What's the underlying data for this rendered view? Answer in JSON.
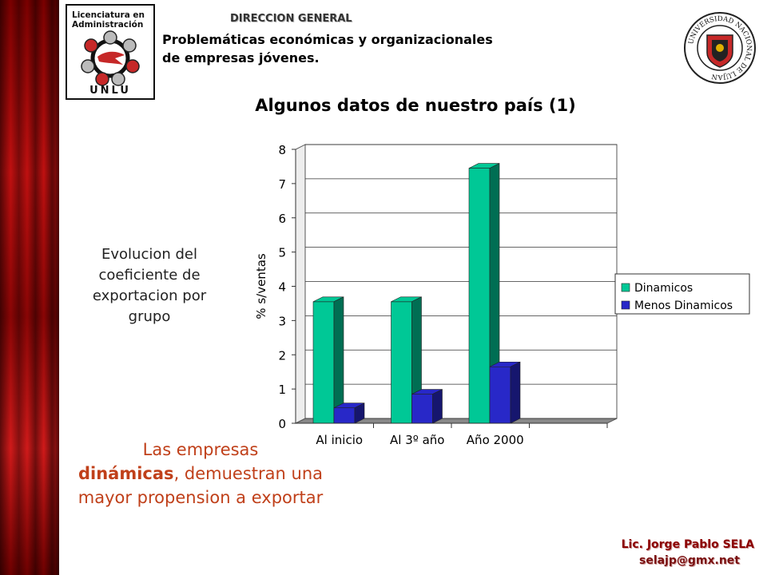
{
  "header": {
    "logo_text": "Licenciatura en Administración",
    "logo_unlu": "UNLU",
    "direccion": "DIRECCION GENERAL",
    "subtitle_line1": "Problemáticas económicas y organizacionales",
    "subtitle_line2": "de empresas jóvenes.",
    "seal_text": "UNIVERSIDAD NACIONAL DE LUJAN"
  },
  "slide": {
    "title": "Algunos datos de nuestro país (1)",
    "side_note": "Evolucion del coeficiente de exportacion por grupo",
    "conclusion_lead": "Las empresas",
    "conclusion_bold": "dinámicas",
    "conclusion_rest": ", demuestran una mayor propension a exportar"
  },
  "footer": {
    "author": "Lic. Jorge Pablo SELA",
    "email": "selajp@gmx.net"
  },
  "colors": {
    "dinamicos": "#00c896",
    "menos_dinamicos": "#2828c8",
    "conclusion": "#c0401a",
    "author": "#8b0000"
  },
  "chart_data": {
    "type": "bar",
    "categories": [
      "Al inicio",
      "Al 3º año",
      "Año 2000",
      ""
    ],
    "series": [
      {
        "name": "Dinamicos",
        "values": [
          3.55,
          3.55,
          7.45,
          null
        ]
      },
      {
        "name": "Menos Dinamicos",
        "values": [
          0.45,
          0.85,
          1.65,
          null
        ]
      }
    ],
    "title": "",
    "xlabel": "",
    "ylabel": "% s/ventas",
    "ylim": [
      0,
      8
    ],
    "yticks": [
      0,
      1,
      2,
      3,
      4,
      5,
      6,
      7,
      8
    ],
    "grid": true,
    "legend": "right",
    "three_d": true
  }
}
